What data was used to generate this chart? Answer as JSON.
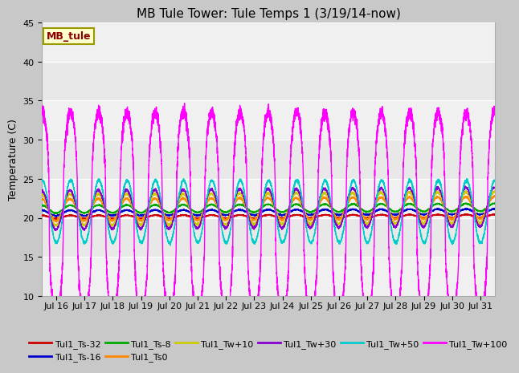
{
  "title": "MB Tule Tower: Tule Temps 1 (3/19/14-now)",
  "ylabel": "Temperature (C)",
  "xlim": [
    15.5,
    31.5
  ],
  "ylim": [
    10,
    45
  ],
  "yticks": [
    10,
    15,
    20,
    25,
    30,
    35,
    40,
    45
  ],
  "xtick_labels": [
    "Jul 16",
    "Jul 17",
    "Jul 18",
    "Jul 19",
    "Jul 20",
    "Jul 21",
    "Jul 22",
    "Jul 23",
    "Jul 24",
    "Jul 25",
    "Jul 26",
    "Jul 27",
    "Jul 28",
    "Jul 29",
    "Jul 30",
    "Jul 31"
  ],
  "xtick_positions": [
    16,
    17,
    18,
    19,
    20,
    21,
    22,
    23,
    24,
    25,
    26,
    27,
    28,
    29,
    30,
    31
  ],
  "fig_bg": "#c8c8c8",
  "plot_bg": "#e8e8e8",
  "annotation_label": "MB_tule",
  "annotation_color": "#8b0000",
  "annotation_bg": "#ffffcc",
  "annotation_edge": "#999900",
  "title_fontsize": 11,
  "label_fontsize": 9,
  "tick_fontsize": 8,
  "legend_fontsize": 8,
  "series": [
    {
      "label": "Tul1_Ts-32",
      "color": "#cc0000"
    },
    {
      "label": "Tul1_Ts-16",
      "color": "#0000cc"
    },
    {
      "label": "Tul1_Ts-8",
      "color": "#00aa00"
    },
    {
      "label": "Tul1_Ts0",
      "color": "#ff8800"
    },
    {
      "label": "Tul1_Tw+10",
      "color": "#cccc00"
    },
    {
      "label": "Tul1_Tw+30",
      "color": "#8800cc"
    },
    {
      "label": "Tul1_Tw+50",
      "color": "#00cccc"
    },
    {
      "label": "Tul1_Tw+100",
      "color": "#ff00ff"
    }
  ]
}
